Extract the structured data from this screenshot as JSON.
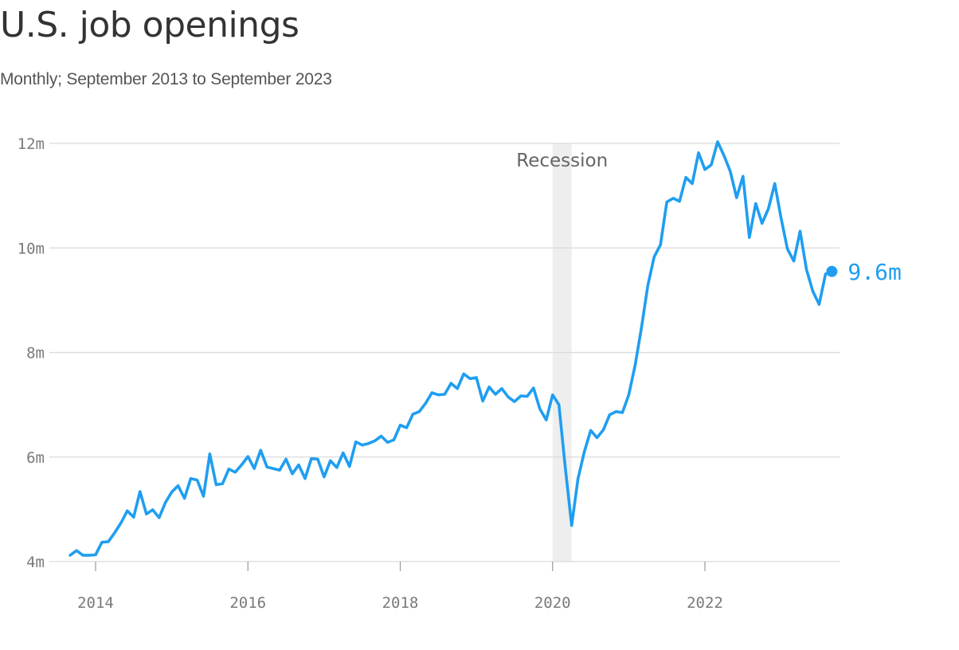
{
  "title": "U.S. job openings",
  "subtitle": "Monthly; September 2013 to September 2023",
  "colors": {
    "line": "#1f9ef0",
    "grid": "#d9d9d9",
    "recession": "#eeeeee"
  },
  "chart_data": {
    "type": "line",
    "title": "U.S. job openings",
    "subtitle": "Monthly; September 2013 to September 2023",
    "xlabel": "",
    "ylabel": "",
    "ylim": [
      4,
      12
    ],
    "xlim": [
      2013.5,
      2023.85
    ],
    "y_ticks": [
      4,
      6,
      8,
      10,
      12
    ],
    "y_tick_labels": [
      "4m",
      "6m",
      "8m",
      "10m",
      "12m"
    ],
    "x_ticks": [
      2014,
      2016,
      2018,
      2020,
      2022
    ],
    "x_tick_labels": [
      "2014",
      "2016",
      "2018",
      "2020",
      "2022"
    ],
    "grid": "horizontal",
    "legend": "none",
    "recession": {
      "label": "Recession",
      "start": 2020.0,
      "end": 2020.25
    },
    "end_label": "9.6m",
    "x_start": "2013-09",
    "x_end": "2023-09",
    "series": [
      {
        "values": [
          4.12,
          4.21,
          4.12,
          4.12,
          4.13,
          4.37,
          4.38,
          4.55,
          4.74,
          4.97,
          4.85,
          5.34,
          4.91,
          4.99,
          4.84,
          5.13,
          5.33,
          5.45,
          5.21,
          5.59,
          5.56,
          5.25,
          6.06,
          5.47,
          5.49,
          5.77,
          5.71,
          5.85,
          6.01,
          5.78,
          6.13,
          5.81,
          5.78,
          5.75,
          5.96,
          5.68,
          5.85,
          5.59,
          5.97,
          5.96,
          5.62,
          5.93,
          5.8,
          6.08,
          5.82,
          6.29,
          6.23,
          6.26,
          6.31,
          6.4,
          6.28,
          6.33,
          6.61,
          6.56,
          6.82,
          6.87,
          7.03,
          7.23,
          7.19,
          7.2,
          7.41,
          7.31,
          7.59,
          7.5,
          7.52,
          7.07,
          7.34,
          7.2,
          7.31,
          7.15,
          7.06,
          7.17,
          7.16,
          7.32,
          6.92,
          6.71,
          7.19,
          7.0,
          5.8,
          4.69,
          5.58,
          6.1,
          6.51,
          6.37,
          6.52,
          6.81,
          6.87,
          6.85,
          7.19,
          7.75,
          8.47,
          9.28,
          9.83,
          10.06,
          10.88,
          10.95,
          10.89,
          11.35,
          11.23,
          11.82,
          11.5,
          11.59,
          12.03,
          11.77,
          11.46,
          10.96,
          11.37,
          10.2,
          10.85,
          10.47,
          10.75,
          11.23,
          10.57,
          9.98,
          9.75,
          10.32,
          9.59,
          9.17,
          8.92,
          9.5,
          9.55
        ]
      }
    ]
  }
}
